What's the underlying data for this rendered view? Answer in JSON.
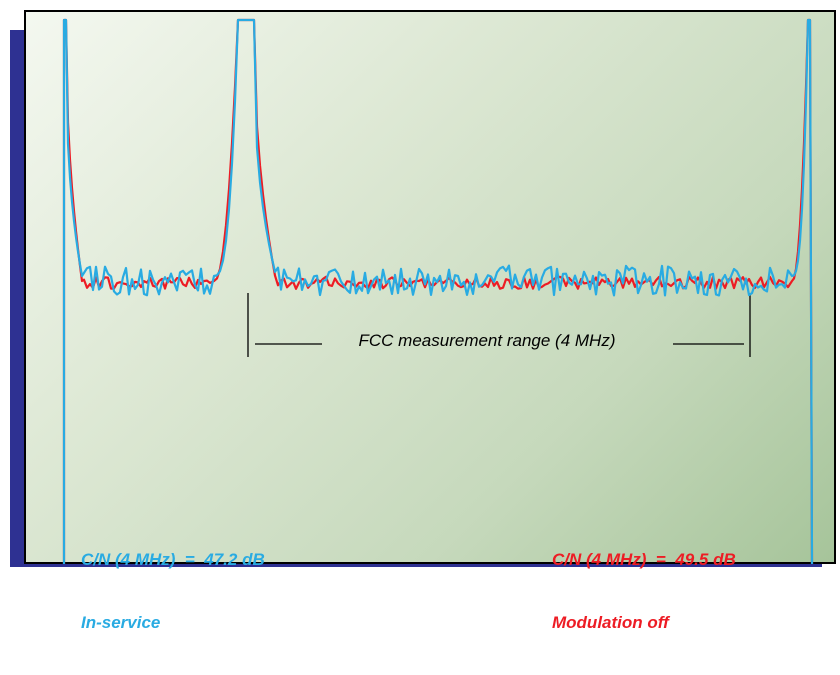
{
  "chart_data": {
    "type": "line",
    "title": "",
    "xlabel": "",
    "ylabel": "",
    "series": [
      {
        "color": "#ed1c24"
      },
      {
        "color": "#29abe2"
      }
    ],
    "annotations": {
      "measurement_range_label": "FCC measurement range (4 MHz)",
      "left_caption": {
        "line1": "C/N (4 MHz)  =  47.2 dB",
        "line2": "In-service",
        "color": "#29abe2"
      },
      "right_caption": {
        "line1": "C/N (4 MHz)  =  49.5 dB",
        "line2": "Modulation off",
        "color": "#ed1c24"
      }
    }
  }
}
